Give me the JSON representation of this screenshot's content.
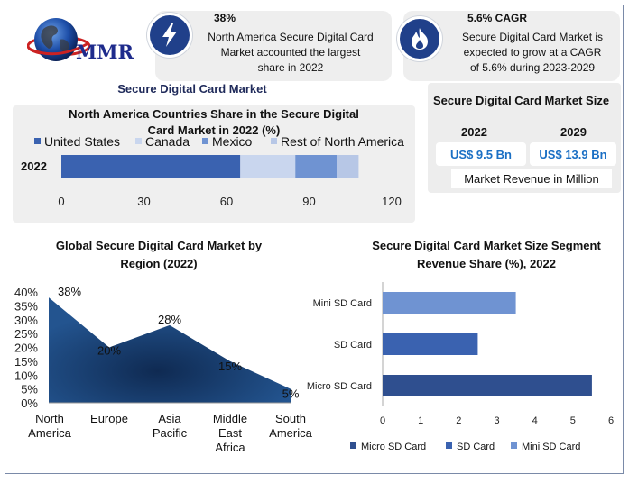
{
  "logo": {
    "text": "MMR"
  },
  "card1": {
    "headline": "38%",
    "body": [
      "North America Secure Digital Card",
      "Market accounted the largest",
      "share in 2022"
    ]
  },
  "card2": {
    "headline": "5.6% CAGR",
    "body": [
      "Secure Digital Card Market is",
      "expected to grow at a CAGR",
      "of 5.6% during 2023-2029"
    ]
  },
  "section_title": "Secure Digital Card Market",
  "market_size": {
    "title": "Secure Digital Card Market Size",
    "year1": "2022",
    "value1": "US$ 9.5 Bn",
    "year2": "2029",
    "value2": "US$ 13.9 Bn",
    "footnote": "Market Revenue in Million"
  },
  "colors": {
    "dark_blue": "#2f4f8f",
    "mid_blue": "#3a62b0",
    "light_blue": "#6f93d2",
    "pale_blue": "#c9d6ee",
    "area_blue": "#23548f"
  },
  "chart_data": [
    {
      "type": "bar",
      "title": [
        "North America Countries Share in the Secure Digital",
        "Card Market in 2022 (%)"
      ],
      "categories": [
        "2022"
      ],
      "series": [
        {
          "name": "United States",
          "values": [
            65
          ]
        },
        {
          "name": "Canada",
          "values": [
            20
          ]
        },
        {
          "name": "Mexico",
          "values": [
            15
          ]
        },
        {
          "name": "Rest of North America",
          "values": [
            8
          ]
        }
      ],
      "xticks": [
        "0",
        "30",
        "60",
        "90",
        "120"
      ],
      "xlim": [
        0,
        120
      ],
      "stacked": true,
      "orientation": "horizontal",
      "legend": "top"
    },
    {
      "type": "area",
      "title": [
        "Global Secure Digital Card Market by",
        "Region (2022)"
      ],
      "categories": [
        "North America",
        "Europe",
        "Asia Pacific",
        "Middle East Africa",
        "South America"
      ],
      "values": [
        38,
        20,
        28,
        15,
        5
      ],
      "data_labels": [
        "38%",
        "20%",
        "28%",
        "15%",
        "5%"
      ],
      "yticks": [
        "0%",
        "5%",
        "10%",
        "15%",
        "20%",
        "25%",
        "30%",
        "35%",
        "40%"
      ],
      "ylim": [
        0,
        40
      ]
    },
    {
      "type": "bar",
      "title": [
        "Secure Digital Card Market Size Segment",
        "Revenue Share (%), 2022"
      ],
      "categories": [
        "Micro SD Card",
        "SD Card",
        "Mini SD Card"
      ],
      "values": [
        5.5,
        2.5,
        3.5
      ],
      "xticks": [
        "0",
        "1",
        "2",
        "3",
        "4",
        "5",
        "6"
      ],
      "xlim": [
        0,
        6
      ],
      "orientation": "horizontal",
      "legend_entries": [
        "Micro SD Card",
        "SD Card",
        "Mini SD Card"
      ],
      "legend": "bottom"
    }
  ]
}
